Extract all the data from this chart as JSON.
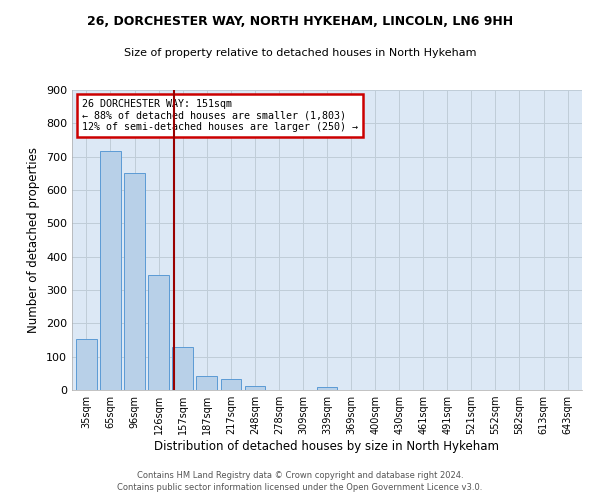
{
  "title": "26, DORCHESTER WAY, NORTH HYKEHAM, LINCOLN, LN6 9HH",
  "subtitle": "Size of property relative to detached houses in North Hykeham",
  "xlabel": "Distribution of detached houses by size in North Hykeham",
  "ylabel": "Number of detached properties",
  "footnote1": "Contains HM Land Registry data © Crown copyright and database right 2024.",
  "footnote2": "Contains public sector information licensed under the Open Government Licence v3.0.",
  "categories": [
    "35sqm",
    "65sqm",
    "96sqm",
    "126sqm",
    "157sqm",
    "187sqm",
    "217sqm",
    "248sqm",
    "278sqm",
    "309sqm",
    "339sqm",
    "369sqm",
    "400sqm",
    "430sqm",
    "461sqm",
    "491sqm",
    "521sqm",
    "552sqm",
    "582sqm",
    "613sqm",
    "643sqm"
  ],
  "values": [
    152,
    717,
    652,
    344,
    130,
    42,
    32,
    12,
    0,
    0,
    8,
    0,
    0,
    0,
    0,
    0,
    0,
    0,
    0,
    0,
    0
  ],
  "bar_color": "#b8d0e8",
  "bar_edge_color": "#5b9bd5",
  "bg_color": "#dce8f5",
  "grid_color": "#c0cdd8",
  "vline_x": 3.65,
  "vline_color": "#990000",
  "annotation_text": "26 DORCHESTER WAY: 151sqm\n← 88% of detached houses are smaller (1,803)\n12% of semi-detached houses are larger (250) →",
  "annotation_box_color": "white",
  "annotation_box_edge": "#cc0000",
  "ylim": [
    0,
    900
  ],
  "yticks": [
    0,
    100,
    200,
    300,
    400,
    500,
    600,
    700,
    800,
    900
  ]
}
